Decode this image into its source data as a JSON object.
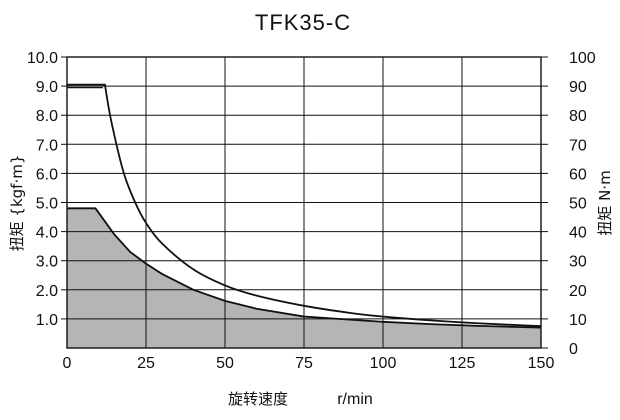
{
  "chart_data": {
    "type": "area",
    "title": "TFK35-C",
    "xlabel": "旋转速度",
    "xunit": "r/min",
    "ylabel_left": "扭矩 {kgf·m}",
    "ylabel_right": "扭矩 N·m",
    "xlim": [
      0,
      150
    ],
    "ylim_left": [
      0,
      10
    ],
    "ylim_right": [
      0,
      100
    ],
    "x_ticks": [
      0,
      25,
      50,
      75,
      100,
      125,
      150
    ],
    "y_left_ticks": [
      "1.0",
      "2.0",
      "3.0",
      "4.0",
      "5.0",
      "6.0",
      "7.0",
      "8.0",
      "9.0",
      "10.0"
    ],
    "y_right_ticks": [
      "0",
      "10",
      "20",
      "30",
      "40",
      "50",
      "60",
      "70",
      "80",
      "90",
      "100"
    ],
    "grid": true,
    "colors": {
      "fill": "#b5b5b5",
      "line": "#111111",
      "grid": "#111111"
    },
    "series": [
      {
        "style": "line",
        "x": [
          0,
          12,
          14,
          18,
          22,
          25,
          30,
          40,
          50,
          60,
          75,
          90,
          100,
          115,
          130,
          150
        ],
        "y": [
          9.05,
          9.05,
          7.8,
          6.0,
          4.9,
          4.3,
          3.6,
          2.7,
          2.15,
          1.8,
          1.45,
          1.2,
          1.08,
          0.95,
          0.85,
          0.75
        ]
      },
      {
        "style": "area",
        "x": [
          0,
          9,
          15,
          20,
          25,
          30,
          40,
          50,
          60,
          75,
          90,
          100,
          115,
          130,
          150
        ],
        "y": [
          4.8,
          4.8,
          3.9,
          3.3,
          2.9,
          2.55,
          2.0,
          1.62,
          1.35,
          1.08,
          0.97,
          0.9,
          0.82,
          0.76,
          0.7
        ]
      }
    ]
  }
}
